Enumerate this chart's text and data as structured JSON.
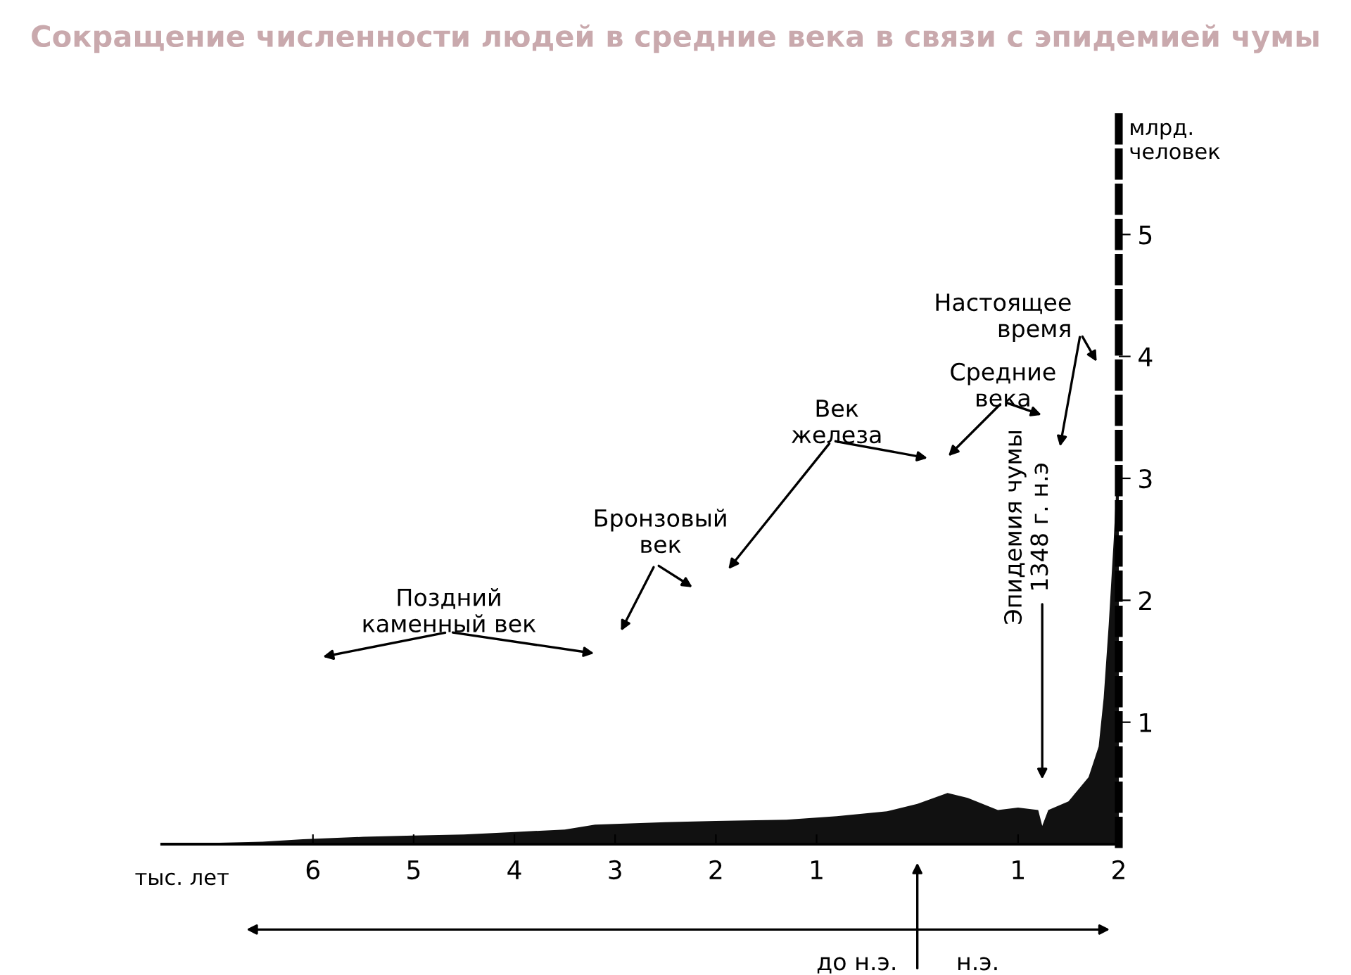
{
  "chart_data": {
    "type": "area",
    "title": "Сокращение численности людей в средние века в связи с эпидемией чумы",
    "xlabel": "тыс. лет",
    "ylabel": "млрд. человек",
    "x": [
      -7.5,
      -7.0,
      -6.5,
      -6.1,
      -5.5,
      -5.0,
      -4.5,
      -4.0,
      -3.5,
      -3.2,
      -2.5,
      -2.0,
      -1.3,
      -0.8,
      -0.3,
      0.0,
      0.3,
      0.5,
      0.8,
      1.0,
      1.2,
      1.24,
      1.3,
      1.5,
      1.7,
      1.8,
      1.85,
      1.9,
      1.95,
      1.98,
      2.0
    ],
    "values": [
      0.0,
      0.01,
      0.02,
      0.04,
      0.06,
      0.07,
      0.08,
      0.1,
      0.12,
      0.16,
      0.18,
      0.19,
      0.2,
      0.23,
      0.27,
      0.33,
      0.42,
      0.38,
      0.28,
      0.3,
      0.28,
      0.15,
      0.28,
      0.35,
      0.55,
      0.8,
      1.2,
      1.8,
      2.5,
      3.0,
      3.0
    ],
    "color": "#111111",
    "xlim": [
      -7.5,
      2
    ],
    "xticks": [
      {
        "value": -6,
        "label": "6"
      },
      {
        "value": -5,
        "label": "5"
      },
      {
        "value": -4,
        "label": "4"
      },
      {
        "value": -3,
        "label": "3"
      },
      {
        "value": -2,
        "label": "2"
      },
      {
        "value": -1,
        "label": "1"
      },
      1,
      2
    ],
    "ylim": [
      0,
      6
    ],
    "yticks": [
      1,
      2,
      3,
      4,
      5
    ],
    "grid": false,
    "legend": false,
    "annotations": [
      "Поздний каменный век",
      "Бронзовый век",
      "Век железа",
      "Средние века",
      "Настоящее время",
      "Эпидемия чумы 1348 г. н.э",
      "до н.э.",
      "н.э."
    ]
  }
}
